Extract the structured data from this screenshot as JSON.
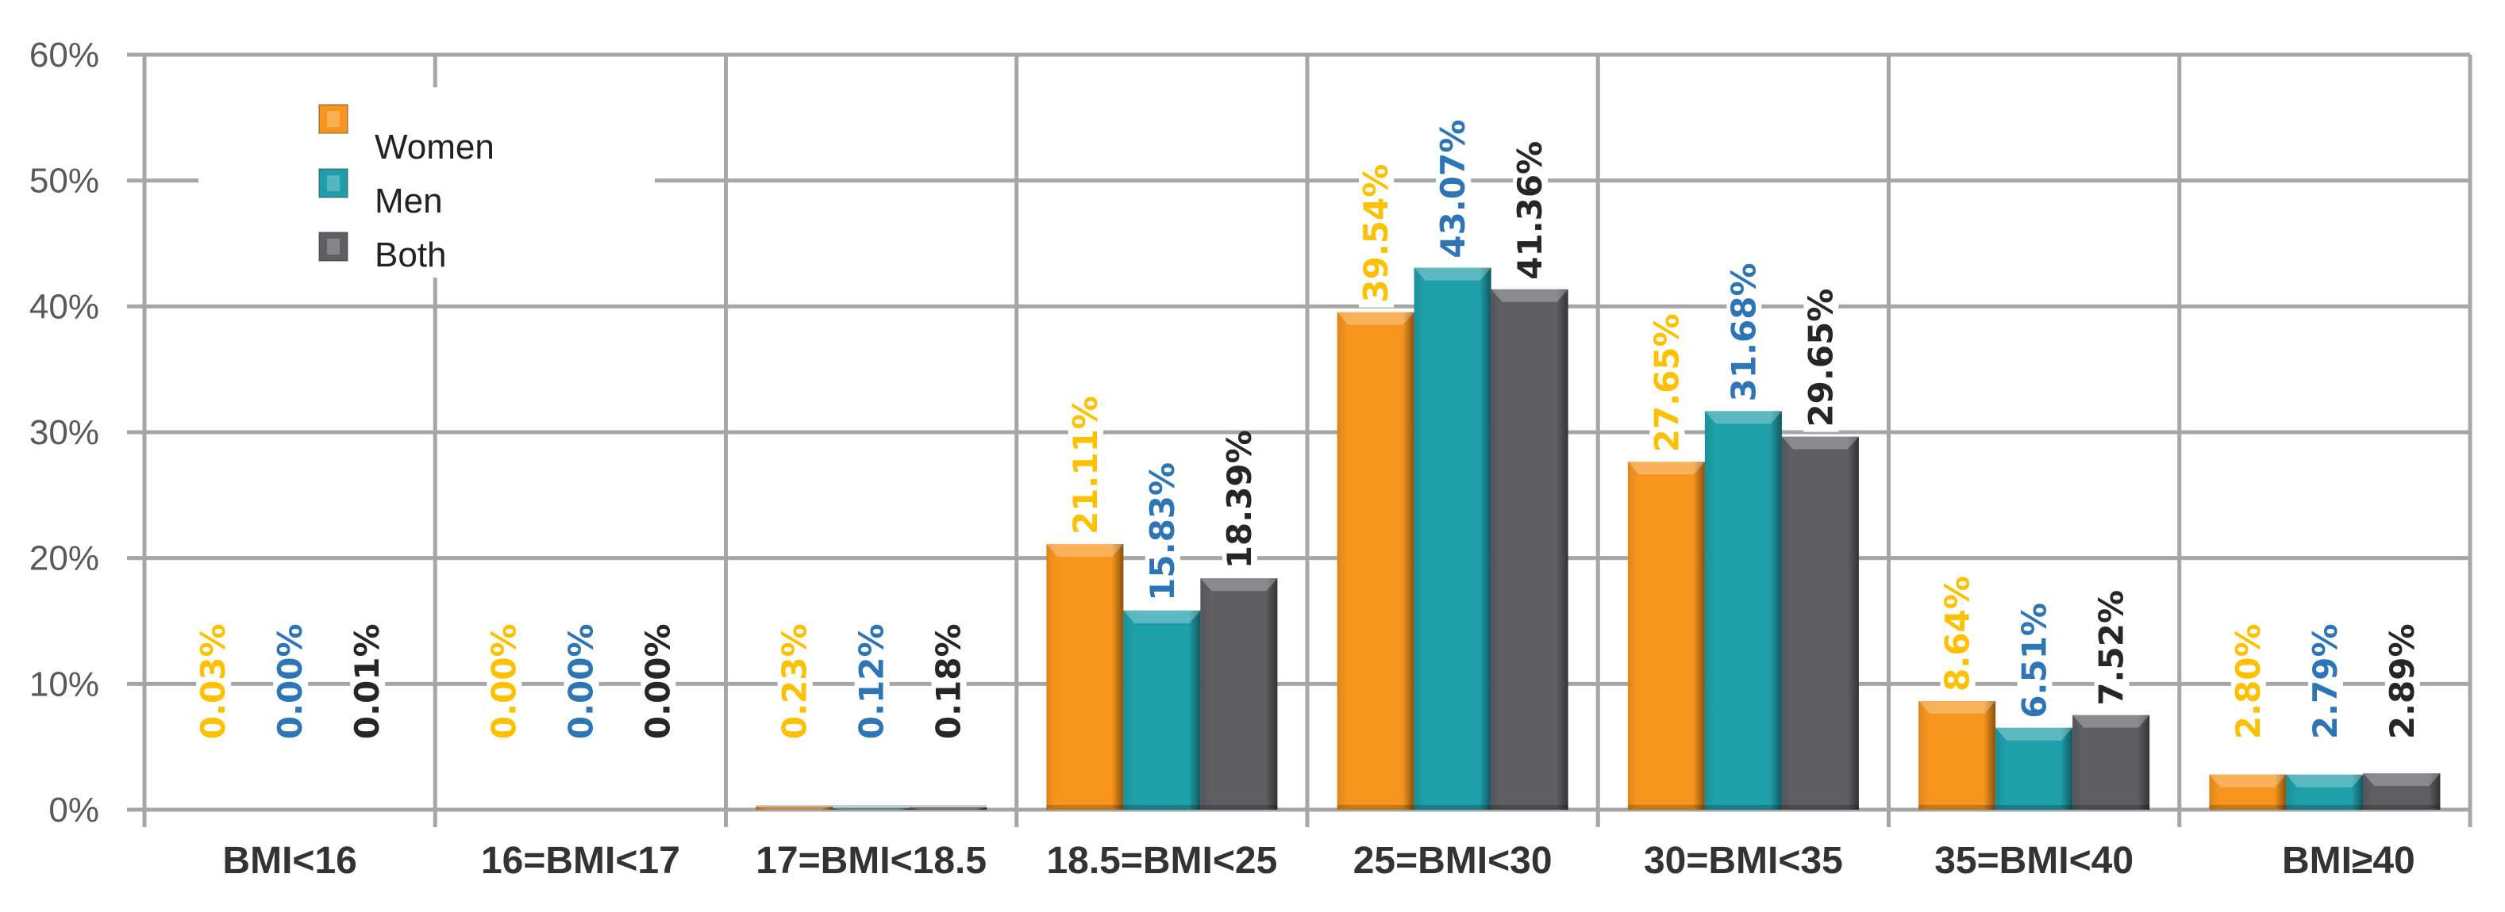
{
  "chart_data": {
    "type": "bar",
    "title": "",
    "xlabel": "",
    "ylabel": "",
    "ylim": [
      0,
      60
    ],
    "yticks": [
      "0%",
      "10%",
      "20%",
      "30%",
      "40%",
      "50%",
      "60%"
    ],
    "grid": true,
    "legend_position": "upper-left (inside plot)",
    "categories": [
      "BMI<16",
      "16=BMI<17",
      "17=BMI<18.5",
      "18.5=BMI<25",
      "25=BMI<30",
      "30=BMI<35",
      "35=BMI<40",
      "BMI≥40"
    ],
    "series": [
      {
        "name": "Women",
        "color": "#F7941D",
        "label_color": "#FFC000",
        "values": [
          0.03,
          0.0,
          0.23,
          21.11,
          39.54,
          27.65,
          8.64,
          2.8
        ],
        "labels": [
          "0.03%",
          "0.00%",
          "0.23%",
          "21.11%",
          "39.54%",
          "27.65%",
          "8.64%",
          "2.80%"
        ]
      },
      {
        "name": "Men",
        "color": "#1E9FAA",
        "label_color": "#2E75B6",
        "values": [
          0.0,
          0.0,
          0.12,
          15.83,
          43.07,
          31.68,
          6.51,
          2.79
        ],
        "labels": [
          "0.00%",
          "0.00%",
          "0.12%",
          "15.83%",
          "43.07%",
          "31.68%",
          "6.51%",
          "2.79%"
        ]
      },
      {
        "name": "Both",
        "color": "#5E5E63",
        "label_color": "#262626",
        "values": [
          0.01,
          0.0,
          0.18,
          18.39,
          41.36,
          29.65,
          7.52,
          2.89
        ],
        "labels": [
          "0.01%",
          "0.00%",
          "0.18%",
          "18.39%",
          "41.36%",
          "29.65%",
          "7.52%",
          "2.89%"
        ]
      }
    ]
  },
  "legend": {
    "items": [
      {
        "label": "Women",
        "color": "#F7941D"
      },
      {
        "label": "Men",
        "color": "#1E9FAA"
      },
      {
        "label": "Both",
        "color": "#5E5E63"
      }
    ]
  }
}
